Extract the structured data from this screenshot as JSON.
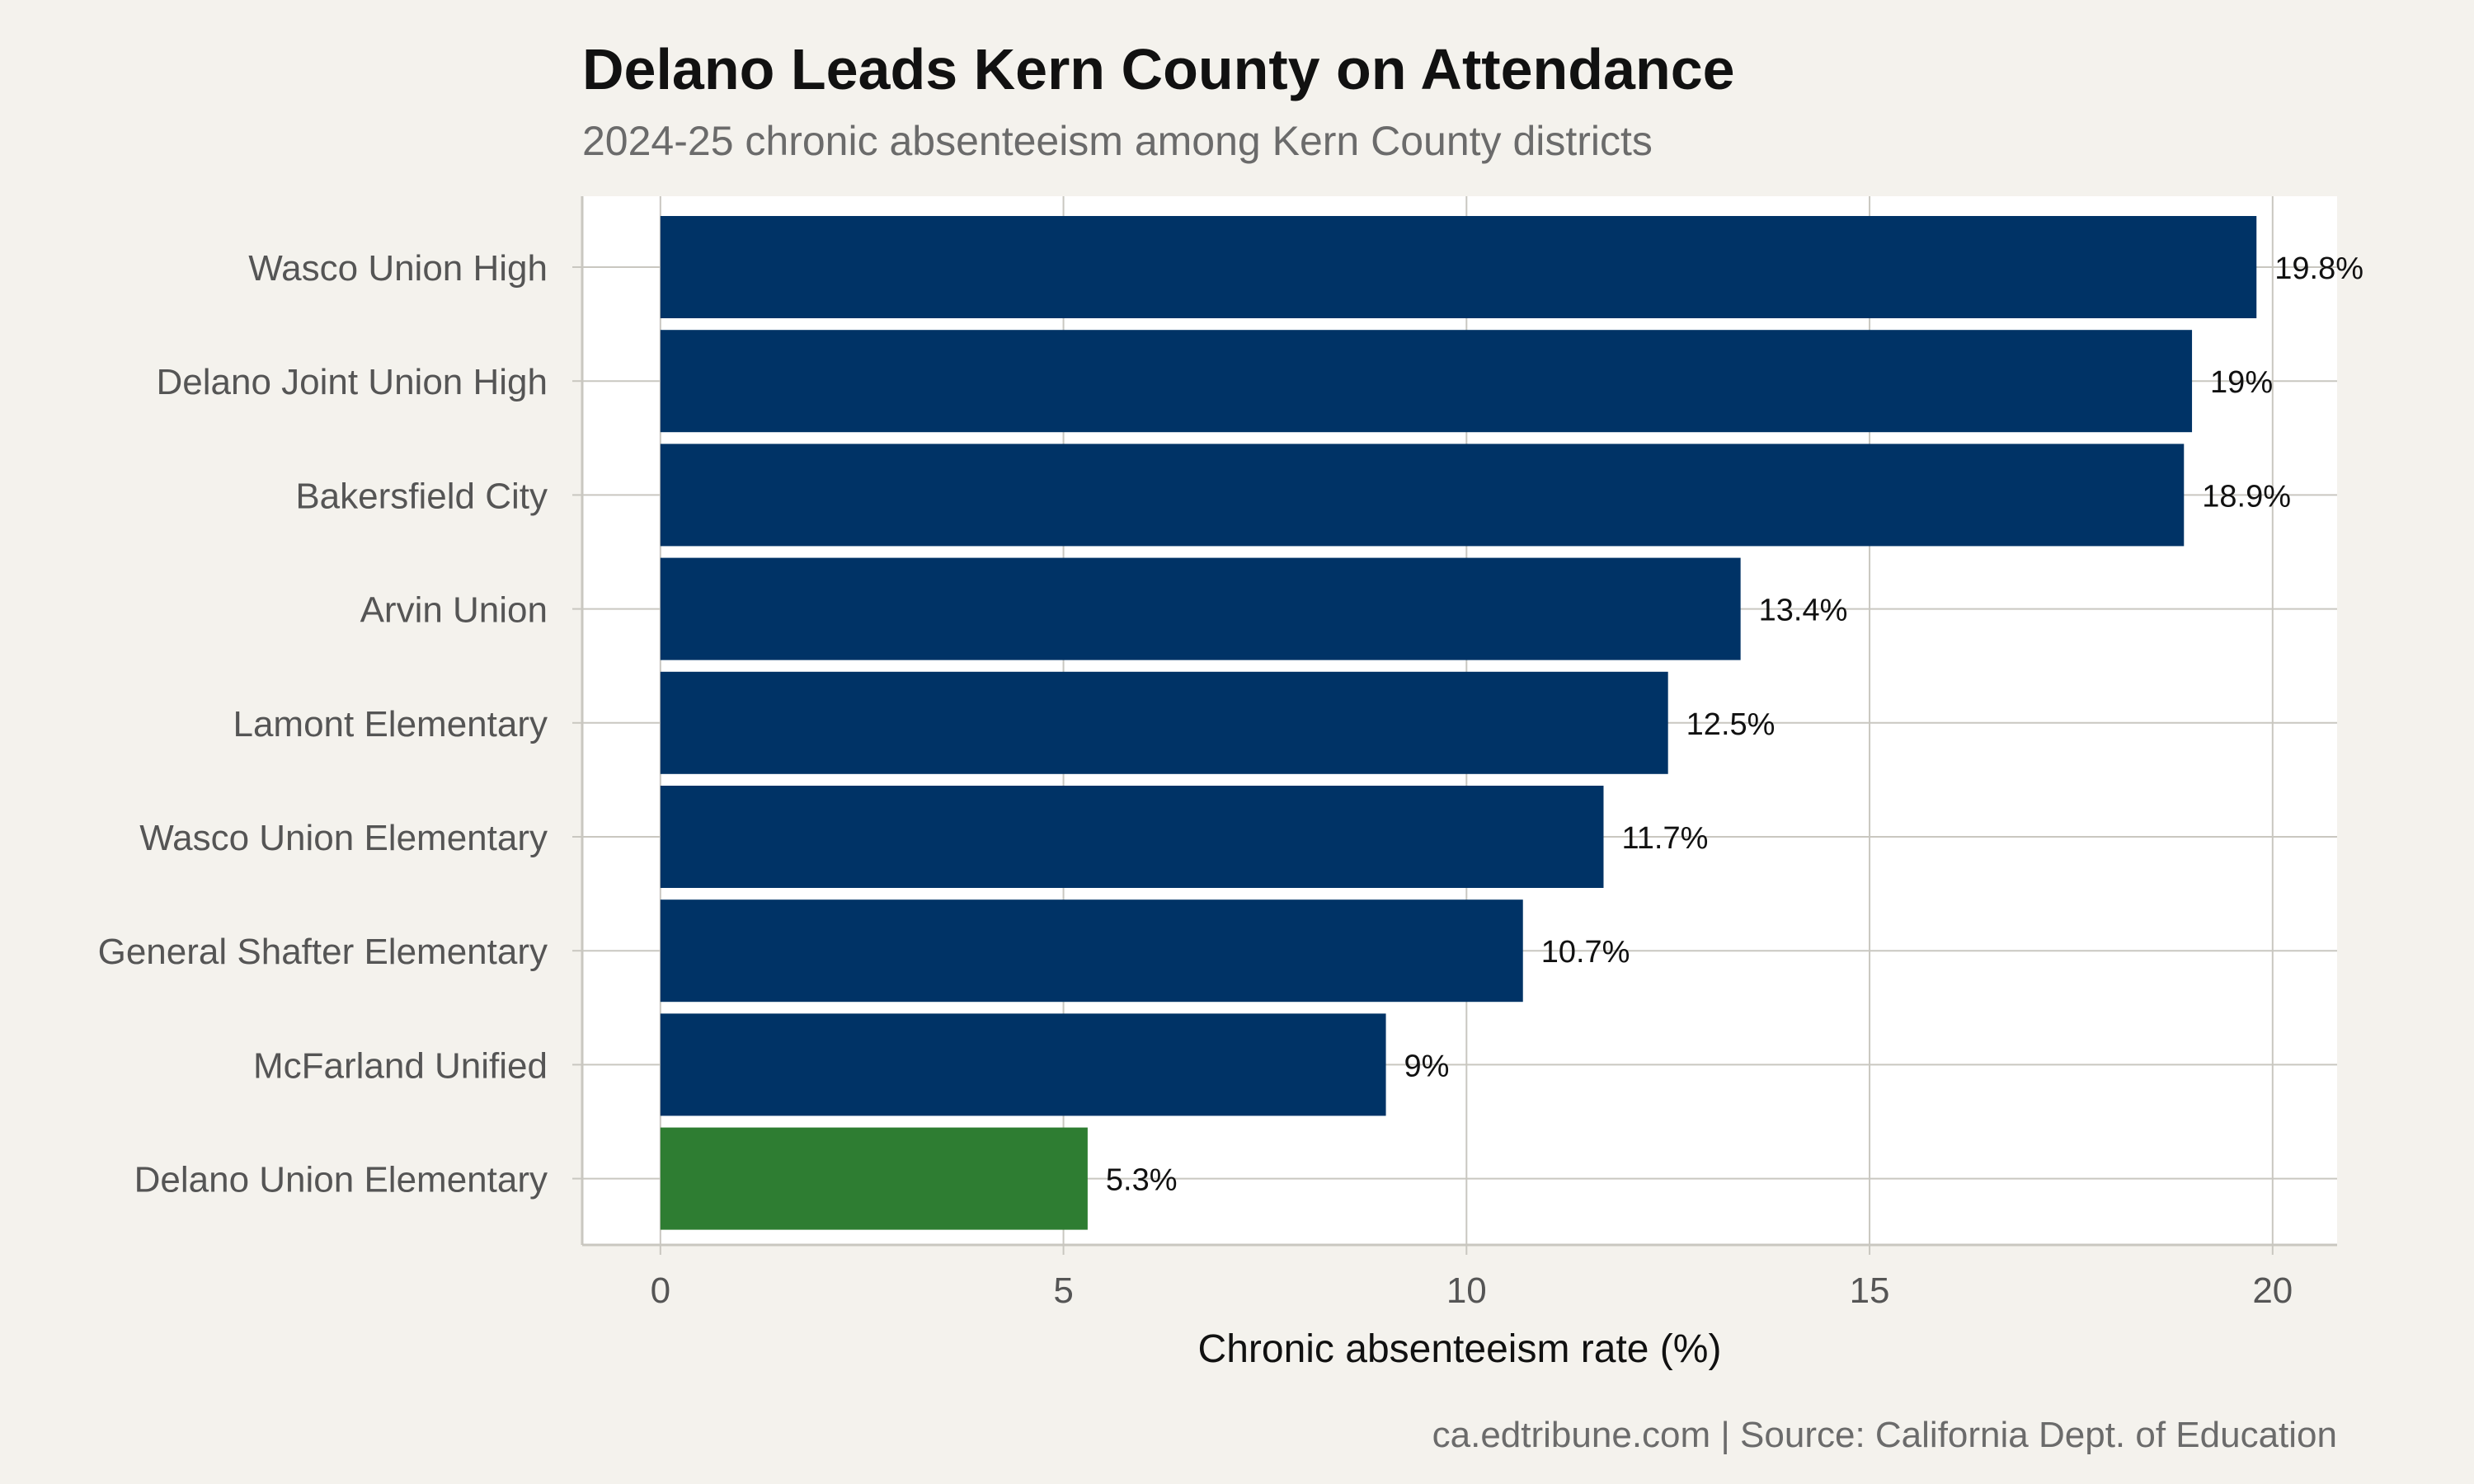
{
  "title": "Delano Leads Kern County on Attendance",
  "subtitle": "2024-25 chronic absenteeism among Kern County districts",
  "caption": "ca.edtribune.com | Source: California Dept. of Education",
  "colors": {
    "default_bar": "#003366",
    "highlight_bar": "#2e7d32",
    "background": "#f4f2ed",
    "panel": "#ffffff",
    "grid": "#c9c7c0"
  },
  "chart_data": {
    "type": "bar",
    "orientation": "horizontal",
    "categories": [
      "Wasco Union High",
      "Delano Joint Union High",
      "Bakersfield City",
      "Arvin Union",
      "Lamont Elementary",
      "Wasco Union Elementary",
      "General Shafter Elementary",
      "McFarland Unified",
      "Delano Union Elementary"
    ],
    "values": [
      19.8,
      19.0,
      18.9,
      13.4,
      12.5,
      11.7,
      10.7,
      9.0,
      5.3
    ],
    "value_labels": [
      "19.8%",
      "19%",
      "18.9%",
      "13.4%",
      "12.5%",
      "11.7%",
      "10.7%",
      "9%",
      "5.3%"
    ],
    "highlight": "Delano Union Elementary",
    "xlabel": "Chronic absenteeism rate (%)",
    "ylabel": "",
    "xlim": [
      -0.97,
      20.8
    ],
    "xticks": [
      0,
      5,
      10,
      15,
      20
    ],
    "xtick_labels": [
      "0",
      "5",
      "10",
      "15",
      "20"
    ],
    "grid": true,
    "legend": "none"
  }
}
